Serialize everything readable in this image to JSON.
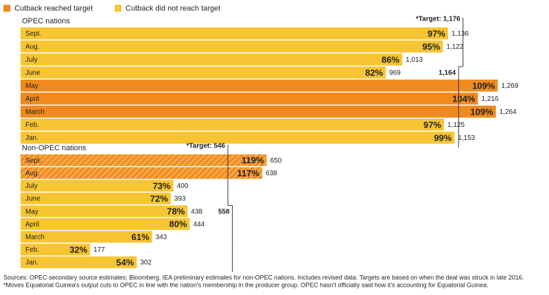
{
  "legend": [
    {
      "name": "Cutback reached target",
      "color": "#ef8a1f"
    },
    {
      "name": "Cutback did not reach target",
      "color": "#f7c532"
    }
  ],
  "chart_data": [
    {
      "type": "bar",
      "title": "OPEC nations",
      "categories": [
        "Sept.",
        "Aug.",
        "July",
        "June",
        "May",
        "April",
        "March",
        "Feb.",
        "Jan."
      ],
      "values": [
        1136,
        1122,
        1013,
        969,
        1269,
        1216,
        1264,
        1125,
        1153
      ],
      "value_labels": [
        "1,136",
        "1,122",
        "1,013",
        "969",
        "1,269",
        "1,216",
        "1,264",
        "1,125",
        "1,153"
      ],
      "percents": [
        97,
        95,
        86,
        82,
        109,
        104,
        109,
        97,
        99
      ],
      "percent_labels": [
        "97%",
        "95%",
        "86%",
        "82%",
        "109%",
        "104%",
        "109%",
        "97%",
        "99%"
      ],
      "status": [
        1,
        1,
        1,
        1,
        0,
        0,
        0,
        1,
        1
      ],
      "hatched": [
        false,
        false,
        false,
        false,
        false,
        false,
        false,
        false,
        false
      ],
      "targets": [
        1176,
        1176,
        1176,
        1164,
        1164,
        1164,
        1164,
        1164,
        1164
      ],
      "target_labels": [
        {
          "value": 1176,
          "label": "*Target: 1,176"
        },
        {
          "value": 1164,
          "label": "1,164"
        }
      ],
      "xlim": [
        0,
        1250
      ]
    },
    {
      "type": "bar",
      "title": "Non-OPEC nations",
      "categories": [
        "Sept.",
        "Aug.",
        "July",
        "June",
        "May",
        "April",
        "March",
        "Feb.",
        "Jan."
      ],
      "values": [
        650,
        638,
        400,
        393,
        438,
        444,
        343,
        177,
        302
      ],
      "percents": [
        119,
        117,
        73,
        72,
        78,
        80,
        61,
        32,
        54
      ],
      "percent_labels": [
        "119%",
        "117%",
        "73%",
        "72%",
        "78%",
        "80%",
        "61%",
        "32%",
        "54%"
      ],
      "status": [
        0,
        0,
        1,
        1,
        1,
        1,
        1,
        1,
        1
      ],
      "hatched": [
        true,
        true,
        false,
        false,
        false,
        false,
        false,
        false,
        false
      ],
      "targets": [
        546,
        546,
        546,
        546,
        558,
        558,
        558,
        558,
        558
      ],
      "target_labels": [
        {
          "value": 546,
          "label": "*Target: 546"
        },
        {
          "value": 558,
          "label": "558"
        }
      ],
      "xlim": [
        0,
        1250
      ]
    }
  ],
  "notes": [
    "Sources: OPEC secondary source estimates; Bloomberg, IEA preliminary estimates for non-OPEC nations. Includes revised data. Targets are based on when the deal was struck in late 2016.",
    "*Moves Equatorial Guinea's output cuts to OPEC in line with the nation's membership in the producer group. OPEC hasn't officially said how it's accounting for Equatorial Guinea."
  ]
}
